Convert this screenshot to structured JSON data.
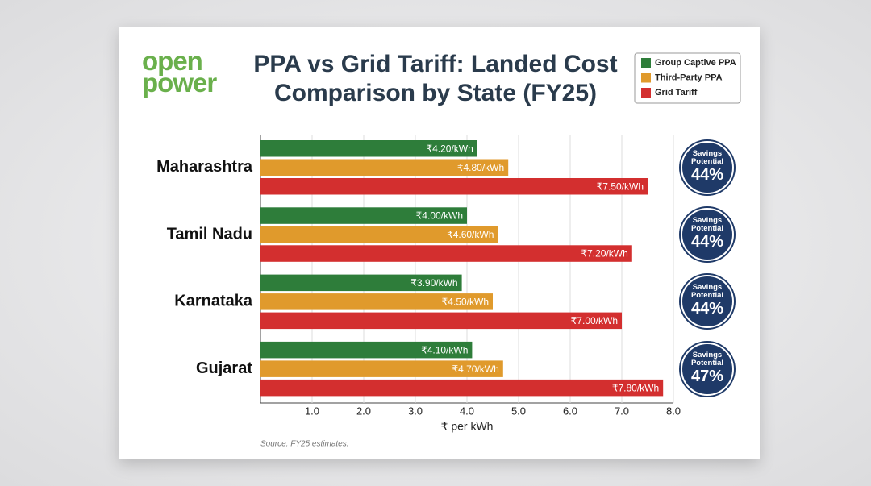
{
  "brand": {
    "line1": "open",
    "line2": "power"
  },
  "chart_data": {
    "type": "bar",
    "orientation": "horizontal",
    "title": "PPA vs Grid Tariff: Landed Cost Comparison by State (FY25)",
    "categories": [
      "Maharashtra",
      "Tamil Nadu",
      "Karnataka",
      "Gujarat"
    ],
    "series": [
      {
        "name": "Group Captive PPA",
        "color": "#2e7d3a",
        "values": [
          4.2,
          4.0,
          3.9,
          4.1
        ],
        "value_labels": [
          "₹4.20/kWh",
          "₹4.00/kWh",
          "₹3.90/kWh",
          "₹4.10/kWh"
        ]
      },
      {
        "name": "Third-Party PPA",
        "color": "#e09a2c",
        "values": [
          4.8,
          4.6,
          4.5,
          4.7
        ],
        "value_labels": [
          "₹4.80/kWh",
          "₹4.60/kWh",
          "₹4.50/kWh",
          "₹4.70/kWh"
        ]
      },
      {
        "name": "Grid Tariff",
        "color": "#d32f2f",
        "values": [
          7.5,
          7.2,
          7.0,
          7.8
        ],
        "value_labels": [
          "₹7.50/kWh",
          "₹7.20/kWh",
          "₹7.00/kWh",
          "₹7.80/kWh"
        ]
      }
    ],
    "xlim": [
      0,
      8
    ],
    "xticks": [
      {
        "value": 1,
        "label": "1.0"
      },
      {
        "value": 2,
        "label": "2.0"
      },
      {
        "value": 3,
        "label": "3.0"
      },
      {
        "value": 4,
        "label": "4.0"
      },
      {
        "value": 5,
        "label": "5.0"
      },
      {
        "value": 6,
        "label": "6.0"
      },
      {
        "value": 7,
        "label": "7.0"
      },
      {
        "value": 8,
        "label": "8.0"
      }
    ],
    "xlabel": "₹ per kWh",
    "grid": true,
    "legend": "top-right",
    "savings": {
      "label": "Savings Potential",
      "values": [
        44,
        44,
        44,
        47
      ],
      "value_labels": [
        "44%",
        "44%",
        "44%",
        "47%"
      ]
    },
    "source": "Source: FY25 estimates."
  }
}
